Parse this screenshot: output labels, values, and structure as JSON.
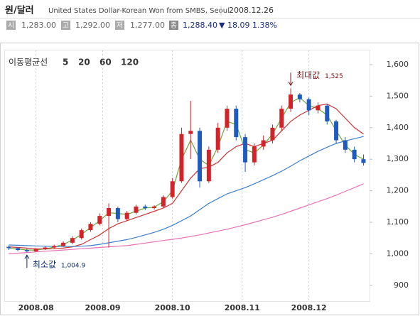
{
  "header": {
    "title": "원/달러",
    "source": "United States Dollar-Korean Won from SMBS, Seoul",
    "date": "2008.12.26",
    "quotes": [
      {
        "icon": "시",
        "value": "1,283.00"
      },
      {
        "icon": "고",
        "value": "1,292.00"
      },
      {
        "icon": "저",
        "value": "1,277.00"
      }
    ],
    "close": {
      "icon": "종",
      "value": "1,288.40",
      "direction": "▼",
      "change": "18.09",
      "change_pct": "1.38%"
    }
  },
  "chart_data": {
    "type": "candlestick",
    "legend_title": "이동평균선",
    "x": [
      1,
      4,
      7,
      10,
      13,
      16,
      19,
      22,
      25,
      28,
      31,
      34,
      37,
      40,
      43,
      46,
      49,
      52,
      55,
      58,
      61,
      64,
      67,
      70,
      73,
      76,
      79,
      82,
      85,
      88,
      91,
      94,
      97,
      100,
      103,
      106,
      109,
      112,
      115,
      118
    ],
    "open": [
      1022,
      1018,
      1012,
      1008,
      1015,
      1020,
      1025,
      1035,
      1050,
      1075,
      1095,
      1120,
      1145,
      1110,
      1130,
      1150,
      1145,
      1150,
      1180,
      1230,
      1380,
      1390,
      1230,
      1330,
      1400,
      1460,
      1370,
      1290,
      1340,
      1360,
      1400,
      1460,
      1505,
      1490,
      1455,
      1470,
      1420,
      1360,
      1330,
      1300
    ],
    "high": [
      1026,
      1021,
      1016,
      1018,
      1024,
      1029,
      1040,
      1056,
      1080,
      1100,
      1128,
      1160,
      1150,
      1136,
      1156,
      1156,
      1154,
      1186,
      1240,
      1400,
      1485,
      1400,
      1340,
      1415,
      1470,
      1470,
      1380,
      1350,
      1375,
      1410,
      1470,
      1525,
      1510,
      1495,
      1480,
      1475,
      1425,
      1370,
      1340,
      1315
    ],
    "low": [
      1012,
      1008,
      1004.9,
      1006,
      1012,
      1017,
      1022,
      1030,
      1045,
      1070,
      1090,
      1020,
      1100,
      1105,
      1125,
      1138,
      1140,
      1145,
      1175,
      1225,
      1300,
      1210,
      1225,
      1320,
      1390,
      1360,
      1260,
      1280,
      1330,
      1350,
      1390,
      1450,
      1480,
      1440,
      1445,
      1410,
      1350,
      1320,
      1290,
      1280
    ],
    "close": [
      1018,
      1012,
      1008,
      1015,
      1020,
      1025,
      1035,
      1050,
      1075,
      1095,
      1120,
      1145,
      1110,
      1130,
      1150,
      1145,
      1150,
      1180,
      1230,
      1380,
      1390,
      1230,
      1330,
      1400,
      1460,
      1370,
      1290,
      1340,
      1360,
      1400,
      1460,
      1505,
      1490,
      1455,
      1470,
      1420,
      1360,
      1330,
      1300,
      1288
    ],
    "up_color": "#d2232a",
    "down_color": "#1f5bbf",
    "series": [
      {
        "name": "5",
        "color": "#6aa83a",
        "values": [
          1018,
          1015,
          1012,
          1012,
          1016,
          1021,
          1030,
          1043,
          1062,
          1083,
          1105,
          1130,
          1128,
          1125,
          1135,
          1145,
          1148,
          1165,
          1200,
          1300,
          1360,
          1300,
          1280,
          1340,
          1420,
          1410,
          1330,
          1320,
          1345,
          1380,
          1430,
          1480,
          1495,
          1470,
          1460,
          1440,
          1390,
          1345,
          1315,
          1300
        ]
      },
      {
        "name": "20",
        "color": "#cc3333",
        "values": [
          1022,
          1020,
          1018,
          1016,
          1015,
          1016,
          1018,
          1022,
          1030,
          1045,
          1060,
          1080,
          1095,
          1105,
          1115,
          1125,
          1135,
          1145,
          1160,
          1200,
          1240,
          1270,
          1275,
          1290,
          1320,
          1340,
          1350,
          1340,
          1350,
          1360,
          1390,
          1420,
          1440,
          1455,
          1470,
          1475,
          1460,
          1430,
          1400,
          1380
        ]
      },
      {
        "name": "60",
        "color": "#3d7fcc",
        "values": [
          1028,
          1027,
          1026,
          1025,
          1024,
          1023,
          1023,
          1023,
          1024,
          1026,
          1030,
          1035,
          1040,
          1045,
          1052,
          1060,
          1068,
          1078,
          1090,
          1105,
          1120,
          1140,
          1160,
          1175,
          1190,
          1200,
          1210,
          1222,
          1235,
          1248,
          1262,
          1278,
          1295,
          1310,
          1325,
          1338,
          1350,
          1358,
          1365,
          1372
        ]
      },
      {
        "name": "120",
        "color": "#e772b5",
        "values": [
          1000,
          1002,
          1004,
          1006,
          1008,
          1010,
          1012,
          1014,
          1016,
          1018,
          1020,
          1022,
          1024,
          1026,
          1030,
          1034,
          1038,
          1042,
          1046,
          1050,
          1055,
          1060,
          1066,
          1072,
          1078,
          1085,
          1092,
          1100,
          1108,
          1116,
          1125,
          1135,
          1145,
          1155,
          1165,
          1175,
          1186,
          1198,
          1210,
          1222
        ]
      }
    ],
    "xlim": [
      0,
      120
    ],
    "xticks": [
      {
        "value": 10,
        "label": "2008.08"
      },
      {
        "value": 32,
        "label": "2008.09"
      },
      {
        "value": 55,
        "label": "2008.10"
      },
      {
        "value": 78,
        "label": "2008.11"
      },
      {
        "value": 100,
        "label": "2008.12"
      }
    ],
    "ylim": [
      850,
      1645
    ],
    "yticks": [
      {
        "value": 900,
        "label": "900"
      },
      {
        "value": 1000,
        "label": "1,000"
      },
      {
        "value": 1100,
        "label": "1,100"
      },
      {
        "value": 1200,
        "label": "1,200"
      },
      {
        "value": 1300,
        "label": "1,300"
      },
      {
        "value": 1400,
        "label": "1,400"
      },
      {
        "value": 1500,
        "label": "1,500"
      },
      {
        "value": 1600,
        "label": "1,600"
      }
    ],
    "grid": "x",
    "annotations": [
      {
        "text": "최대값",
        "label": "1,525",
        "x": 94,
        "value": 1525,
        "kind": "max"
      },
      {
        "text": "최소값",
        "label": "1,004.9",
        "x": 7,
        "value": 1004.9,
        "kind": "min"
      }
    ]
  }
}
